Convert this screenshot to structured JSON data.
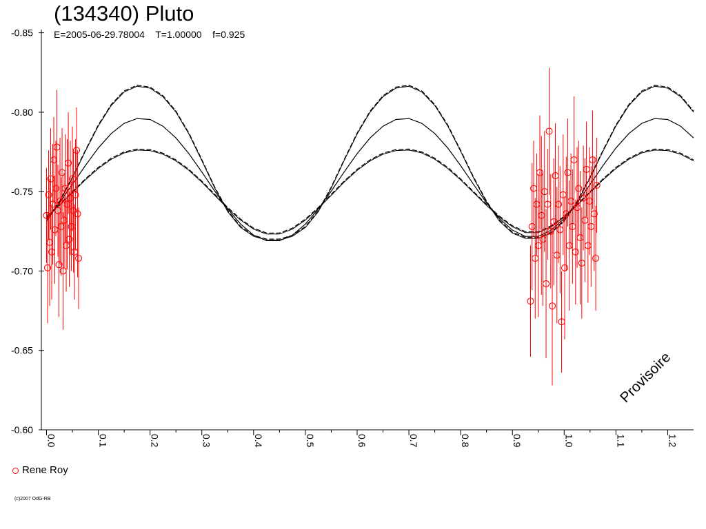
{
  "title": "(134340) Pluto",
  "subtitle": "E=2005-06-29.78004    T=1.00000    f=0.925",
  "watermark": "Provisoire",
  "copyright": "(c)2007 OdG-RB",
  "legend": [
    {
      "label": "Rene Roy",
      "color": "#ff0000"
    }
  ],
  "chart_data": {
    "type": "scatter",
    "title": "(134340) Pluto",
    "xlim": [
      -0.01,
      1.25
    ],
    "ylim": [
      -0.6,
      -0.852
    ],
    "x_ticks": [
      0.0,
      0.1,
      0.2,
      0.3,
      0.4,
      0.5,
      0.6,
      0.7,
      0.8,
      0.9,
      1.0,
      1.1,
      1.2
    ],
    "x_tick_labels": [
      "0.0",
      "0.1",
      "0.2",
      "0.3",
      "0.4",
      "0.5",
      "0.6",
      "0.7",
      "0.8",
      "0.9",
      "1.0",
      "1.1",
      "1.2"
    ],
    "y_ticks": [
      -0.85,
      -0.8,
      -0.75,
      -0.7,
      -0.65,
      -0.6
    ],
    "y_tick_labels": [
      "-0.85",
      "-0.80",
      "-0.75",
      "-0.70",
      "-0.65",
      "-0.60"
    ],
    "grid": false,
    "fit_curves": [
      {
        "style": "solid",
        "color": "#000000",
        "x": [
          0.0,
          0.025,
          0.05,
          0.075,
          0.1,
          0.125,
          0.15,
          0.175,
          0.2,
          0.225,
          0.25,
          0.275,
          0.3,
          0.325,
          0.35,
          0.375,
          0.4,
          0.425,
          0.45,
          0.475,
          0.5,
          0.525,
          0.55,
          0.575,
          0.6,
          0.625,
          0.65,
          0.675,
          0.7,
          0.725,
          0.75,
          0.775,
          0.8,
          0.825,
          0.85,
          0.875,
          0.9,
          0.925,
          0.95,
          0.975,
          1.0,
          1.025,
          1.05,
          1.075,
          1.1,
          1.125,
          1.15,
          1.175,
          1.2,
          1.225,
          1.25
        ],
        "y": [
          -0.733,
          -0.7429,
          -0.7545,
          -0.7664,
          -0.7775,
          -0.7866,
          -0.793,
          -0.796,
          -0.7954,
          -0.7912,
          -0.7838,
          -0.7739,
          -0.7624,
          -0.7503,
          -0.739,
          -0.7295,
          -0.7226,
          -0.7191,
          -0.7191,
          -0.7226,
          -0.7295,
          -0.739,
          -0.7503,
          -0.7624,
          -0.7739,
          -0.7838,
          -0.7912,
          -0.7954,
          -0.796,
          -0.793,
          -0.7866,
          -0.7775,
          -0.7664,
          -0.7545,
          -0.7429,
          -0.733,
          -0.7258,
          -0.7218,
          -0.7218,
          -0.7258,
          -0.733,
          -0.7429,
          -0.7545,
          -0.7664,
          -0.7775,
          -0.7866,
          -0.793,
          -0.796,
          -0.7954,
          -0.7912,
          -0.7838
        ]
      },
      {
        "style": "dashed",
        "color": "#000000",
        "x": [
          0.0,
          0.025,
          0.05,
          0.075,
          0.1,
          0.125,
          0.15,
          0.175,
          0.2,
          0.225,
          0.25,
          0.275,
          0.3,
          0.325,
          0.35,
          0.375,
          0.4,
          0.425,
          0.45,
          0.475,
          0.5,
          0.525,
          0.55,
          0.575,
          0.6,
          0.625,
          0.65,
          0.675,
          0.7,
          0.725,
          0.75,
          0.775,
          0.8,
          0.825,
          0.85,
          0.875,
          0.9,
          0.925,
          0.95,
          0.975,
          1.0,
          1.025,
          1.05,
          1.075,
          1.1,
          1.125,
          1.15,
          1.175,
          1.2,
          1.225,
          1.25
        ],
        "y": [
          -0.732,
          -0.744,
          -0.7592,
          -0.776,
          -0.792,
          -0.8049,
          -0.8134,
          -0.817,
          -0.8158,
          -0.8104,
          -0.8007,
          -0.7869,
          -0.7702,
          -0.7528,
          -0.738,
          -0.728,
          -0.7225,
          -0.7201,
          -0.7201,
          -0.7225,
          -0.728,
          -0.738,
          -0.7528,
          -0.7702,
          -0.7869,
          -0.8007,
          -0.8104,
          -0.8158,
          -0.817,
          -0.8134,
          -0.8049,
          -0.792,
          -0.776,
          -0.7592,
          -0.744,
          -0.732,
          -0.7245,
          -0.7212,
          -0.7212,
          -0.7245,
          -0.732,
          -0.744,
          -0.7592,
          -0.776,
          -0.792,
          -0.8049,
          -0.8134,
          -0.817,
          -0.8158,
          -0.8104,
          -0.8007
        ]
      },
      {
        "style": "dashed",
        "color": "#000000",
        "x": [
          0.0,
          0.025,
          0.05,
          0.075,
          0.1,
          0.125,
          0.15,
          0.175,
          0.2,
          0.225,
          0.25,
          0.275,
          0.3,
          0.325,
          0.35,
          0.375,
          0.4,
          0.425,
          0.45,
          0.475,
          0.5,
          0.525,
          0.55,
          0.575,
          0.6,
          0.625,
          0.65,
          0.675,
          0.7,
          0.725,
          0.75,
          0.775,
          0.8,
          0.825,
          0.85,
          0.875,
          0.9,
          0.925,
          0.95,
          0.975,
          1.0,
          1.025,
          1.05,
          1.075,
          1.1,
          1.125,
          1.15,
          1.175,
          1.2,
          1.225,
          1.25
        ],
        "y": [
          -0.7345,
          -0.742,
          -0.75,
          -0.758,
          -0.7652,
          -0.771,
          -0.775,
          -0.7768,
          -0.7765,
          -0.7742,
          -0.77,
          -0.764,
          -0.7566,
          -0.7483,
          -0.74,
          -0.7327,
          -0.727,
          -0.7239,
          -0.7239,
          -0.727,
          -0.7327,
          -0.74,
          -0.7483,
          -0.7566,
          -0.764,
          -0.77,
          -0.7742,
          -0.7765,
          -0.7768,
          -0.775,
          -0.771,
          -0.7652,
          -0.758,
          -0.75,
          -0.742,
          -0.7345,
          -0.7285,
          -0.7248,
          -0.7248,
          -0.7285,
          -0.7345,
          -0.742,
          -0.75,
          -0.758,
          -0.7652,
          -0.771,
          -0.775,
          -0.7768,
          -0.7765,
          -0.7742,
          -0.77
        ]
      }
    ],
    "series": [
      {
        "name": "Rene Roy",
        "color": "#ff0000",
        "marker": "open-circle",
        "error_bars": true,
        "x": [
          0.0,
          0.002,
          0.004,
          0.006,
          0.008,
          0.01,
          0.012,
          0.014,
          0.016,
          0.018,
          0.02,
          0.022,
          0.024,
          0.026,
          0.028,
          0.03,
          0.032,
          0.034,
          0.036,
          0.038,
          0.04,
          0.042,
          0.044,
          0.046,
          0.048,
          0.05,
          0.052,
          0.054,
          0.056,
          0.058,
          0.06,
          0.062,
          0.935,
          0.938,
          0.941,
          0.944,
          0.947,
          0.95,
          0.953,
          0.956,
          0.959,
          0.962,
          0.965,
          0.968,
          0.971,
          0.974,
          0.977,
          0.98,
          0.983,
          0.986,
          0.989,
          0.992,
          0.995,
          0.998,
          1.001,
          1.004,
          1.007,
          1.01,
          1.013,
          1.016,
          1.019,
          1.022,
          1.025,
          1.028,
          1.031,
          1.034,
          1.037,
          1.04,
          1.043,
          1.046,
          1.049,
          1.052,
          1.055,
          1.058,
          1.061,
          1.063
        ],
        "y": [
          -0.735,
          -0.702,
          -0.748,
          -0.718,
          -0.758,
          -0.712,
          -0.742,
          -0.77,
          -0.726,
          -0.752,
          -0.778,
          -0.738,
          -0.704,
          -0.744,
          -0.728,
          -0.762,
          -0.7,
          -0.732,
          -0.752,
          -0.716,
          -0.742,
          -0.768,
          -0.72,
          -0.746,
          -0.728,
          -0.758,
          -0.738,
          -0.712,
          -0.748,
          -0.776,
          -0.736,
          -0.708,
          -0.681,
          -0.728,
          -0.752,
          -0.708,
          -0.742,
          -0.716,
          -0.762,
          -0.735,
          -0.72,
          -0.75,
          -0.692,
          -0.742,
          -0.788,
          -0.725,
          -0.678,
          -0.731,
          -0.76,
          -0.71,
          -0.742,
          -0.726,
          -0.668,
          -0.748,
          -0.702,
          -0.736,
          -0.762,
          -0.716,
          -0.744,
          -0.728,
          -0.77,
          -0.712,
          -0.74,
          -0.752,
          -0.721,
          -0.705,
          -0.746,
          -0.732,
          -0.764,
          -0.716,
          -0.744,
          -0.728,
          -0.77,
          -0.736,
          -0.708,
          -0.754
        ],
        "err": [
          0.03,
          0.035,
          0.028,
          0.04,
          0.032,
          0.03,
          0.038,
          0.027,
          0.034,
          0.03,
          0.036,
          0.029,
          0.033,
          0.04,
          0.031,
          0.028,
          0.037,
          0.03,
          0.034,
          0.029,
          0.041,
          0.032,
          0.03,
          0.036,
          0.028,
          0.033,
          0.039,
          0.03,
          0.035,
          0.027,
          0.04,
          0.032,
          0.035,
          0.04,
          0.03,
          0.038,
          0.032,
          0.045,
          0.036,
          0.05,
          0.042,
          0.038,
          0.047,
          0.035,
          0.04,
          0.036,
          0.05,
          0.04,
          0.033,
          0.043,
          0.037,
          0.04,
          0.032,
          0.038,
          0.045,
          0.036,
          0.034,
          0.041,
          0.03,
          0.036,
          0.04,
          0.033,
          0.038,
          0.03,
          0.042,
          0.035,
          0.033,
          0.039,
          0.03,
          0.036,
          0.034,
          0.038,
          0.031,
          0.036,
          0.033,
          0.03
        ]
      }
    ]
  }
}
